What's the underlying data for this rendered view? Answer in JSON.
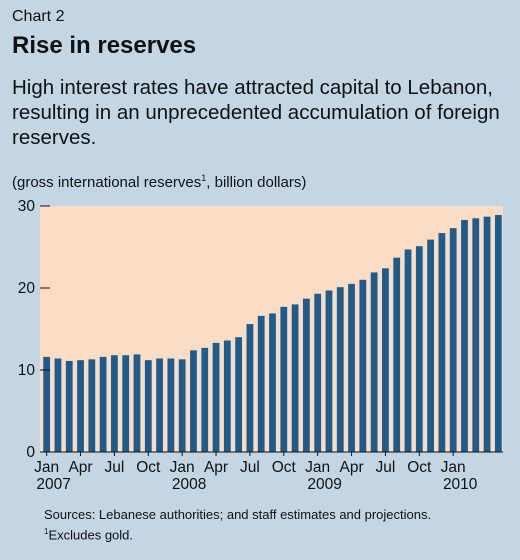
{
  "header": {
    "chart_number": "Chart 2",
    "title": "Rise in reserves",
    "subtitle": "High interest rates have attracted capital to Lebanon, resulting in an unprecedented accumulation of foreign reserves.",
    "units_prefix": "(gross international reserves",
    "units_note_mark": "1",
    "units_suffix": ", billion dollars)"
  },
  "footer": {
    "sources": "Sources: Lebanese authorities; and staff estimates and projections.",
    "note_mark": "1",
    "note_text": "Excludes gold."
  },
  "colors": {
    "background": "#c4d6e4",
    "plot_area": "#fbdcc4",
    "bar": "#1e5c8e"
  },
  "chart_data": {
    "type": "bar",
    "title": "Rise in reserves",
    "ylabel": "(gross international reserves, billion dollars)",
    "ylim": [
      0,
      30
    ],
    "yticks": [
      0,
      10,
      20,
      30
    ],
    "x_tick_labels": [
      {
        "month": "Jan",
        "year": "2007",
        "index": 0
      },
      {
        "month": "Apr",
        "year": "",
        "index": 3
      },
      {
        "month": "Jul",
        "year": "",
        "index": 6
      },
      {
        "month": "Oct",
        "year": "",
        "index": 9
      },
      {
        "month": "Jan",
        "year": "2008",
        "index": 12
      },
      {
        "month": "Apr",
        "year": "",
        "index": 15
      },
      {
        "month": "Jul",
        "year": "",
        "index": 18
      },
      {
        "month": "Oct",
        "year": "",
        "index": 21
      },
      {
        "month": "Jan",
        "year": "2009",
        "index": 24
      },
      {
        "month": "Apr",
        "year": "",
        "index": 27
      },
      {
        "month": "Jul",
        "year": "",
        "index": 30
      },
      {
        "month": "Oct",
        "year": "",
        "index": 33
      },
      {
        "month": "Jan",
        "year": "2010",
        "index": 36
      }
    ],
    "grid": false,
    "legend": "none",
    "categories": [
      "2007-01",
      "2007-02",
      "2007-03",
      "2007-04",
      "2007-05",
      "2007-06",
      "2007-07",
      "2007-08",
      "2007-09",
      "2007-10",
      "2007-11",
      "2007-12",
      "2008-01",
      "2008-02",
      "2008-03",
      "2008-04",
      "2008-05",
      "2008-06",
      "2008-07",
      "2008-08",
      "2008-09",
      "2008-10",
      "2008-11",
      "2008-12",
      "2009-01",
      "2009-02",
      "2009-03",
      "2009-04",
      "2009-05",
      "2009-06",
      "2009-07",
      "2009-08",
      "2009-09",
      "2009-10",
      "2009-11",
      "2009-12",
      "2010-01",
      "2010-02",
      "2010-03",
      "2010-04",
      "2010-05"
    ],
    "values": [
      11.6,
      11.4,
      11.1,
      11.2,
      11.3,
      11.6,
      11.8,
      11.8,
      11.9,
      11.2,
      11.4,
      11.4,
      11.3,
      12.4,
      12.7,
      13.3,
      13.6,
      14.0,
      15.6,
      16.6,
      16.9,
      17.7,
      18.0,
      18.7,
      19.3,
      19.7,
      20.1,
      20.5,
      21.0,
      21.9,
      22.4,
      23.7,
      24.7,
      25.1,
      25.9,
      26.7,
      27.3,
      28.3,
      28.5,
      28.7,
      28.9
    ]
  }
}
